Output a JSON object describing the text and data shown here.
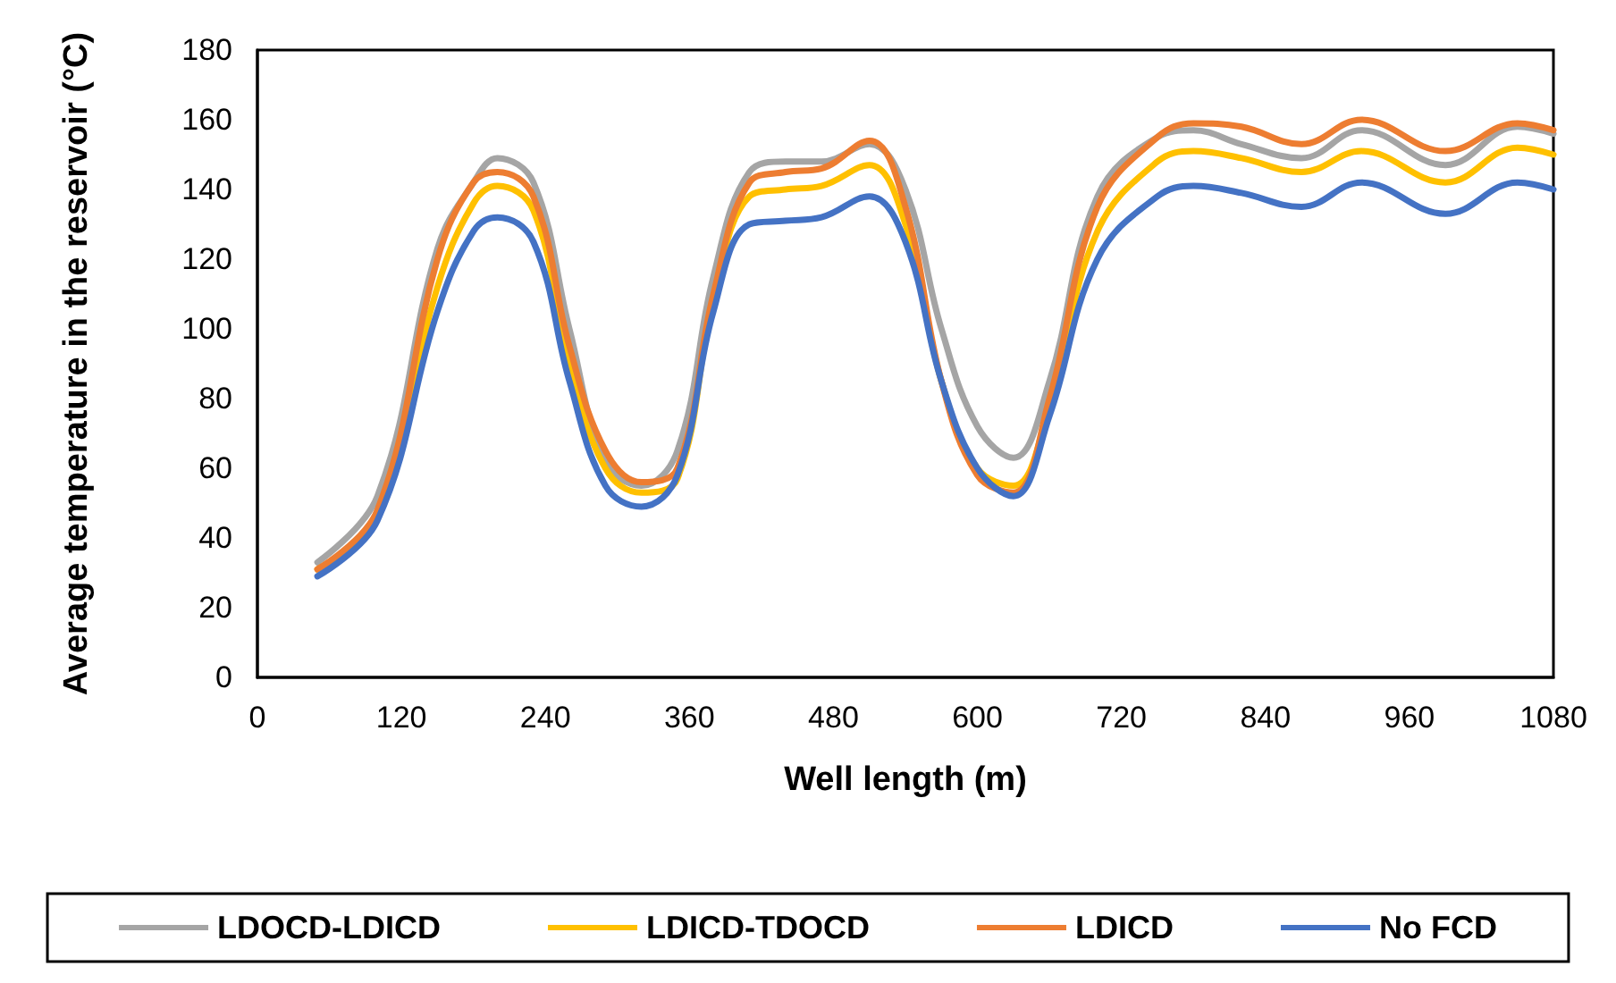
{
  "chart_data": {
    "type": "line",
    "xlabel": "Well length (m)",
    "ylabel": "Average temperature in the reservoir (°C)",
    "x": [
      50,
      100,
      150,
      180,
      200,
      230,
      260,
      290,
      320,
      350,
      380,
      410,
      440,
      470,
      510,
      540,
      570,
      600,
      630,
      660,
      700,
      750,
      780,
      820,
      870,
      920,
      990,
      1050,
      1080
    ],
    "series": [
      {
        "name": "LDOCD-LDICD",
        "color": "#a5a5a5",
        "values": [
          33,
          52,
          123,
          142,
          149,
          142,
          100,
          62,
          55,
          65,
          115,
          145,
          148,
          148,
          153,
          140,
          100,
          72,
          63,
          85,
          138,
          155,
          157,
          153,
          149,
          157,
          147,
          158,
          156
        ]
      },
      {
        "name": "LDICD-TDOCD",
        "color": "#ffc000",
        "values": [
          31,
          47,
          112,
          136,
          141,
          134,
          90,
          60,
          53,
          57,
          108,
          138,
          140,
          141,
          147,
          130,
          85,
          60,
          55,
          78,
          128,
          148,
          151,
          149,
          145,
          151,
          142,
          152,
          150
        ]
      },
      {
        "name": "LDICD",
        "color": "#ed7d31",
        "values": [
          31,
          48,
          120,
          142,
          145,
          138,
          95,
          65,
          56,
          60,
          110,
          142,
          145,
          146,
          154,
          135,
          85,
          58,
          53,
          80,
          135,
          155,
          159,
          158,
          153,
          160,
          151,
          159,
          157
        ]
      },
      {
        "name": "No FCD",
        "color": "#4472c4",
        "values": [
          29,
          45,
          105,
          128,
          132,
          125,
          85,
          55,
          49,
          58,
          105,
          130,
          131,
          132,
          138,
          125,
          85,
          60,
          52,
          75,
          120,
          138,
          141,
          139,
          135,
          142,
          133,
          142,
          140
        ]
      }
    ],
    "xlim": [
      0,
      1080
    ],
    "xticks": [
      0,
      120,
      240,
      360,
      480,
      600,
      720,
      840,
      960,
      1080
    ],
    "ylim": [
      0,
      180
    ],
    "yticks": [
      0,
      20,
      40,
      60,
      80,
      100,
      120,
      140,
      160,
      180
    ],
    "grid": false,
    "legend": "bottom",
    "marker": "none",
    "line_style": "solid"
  }
}
